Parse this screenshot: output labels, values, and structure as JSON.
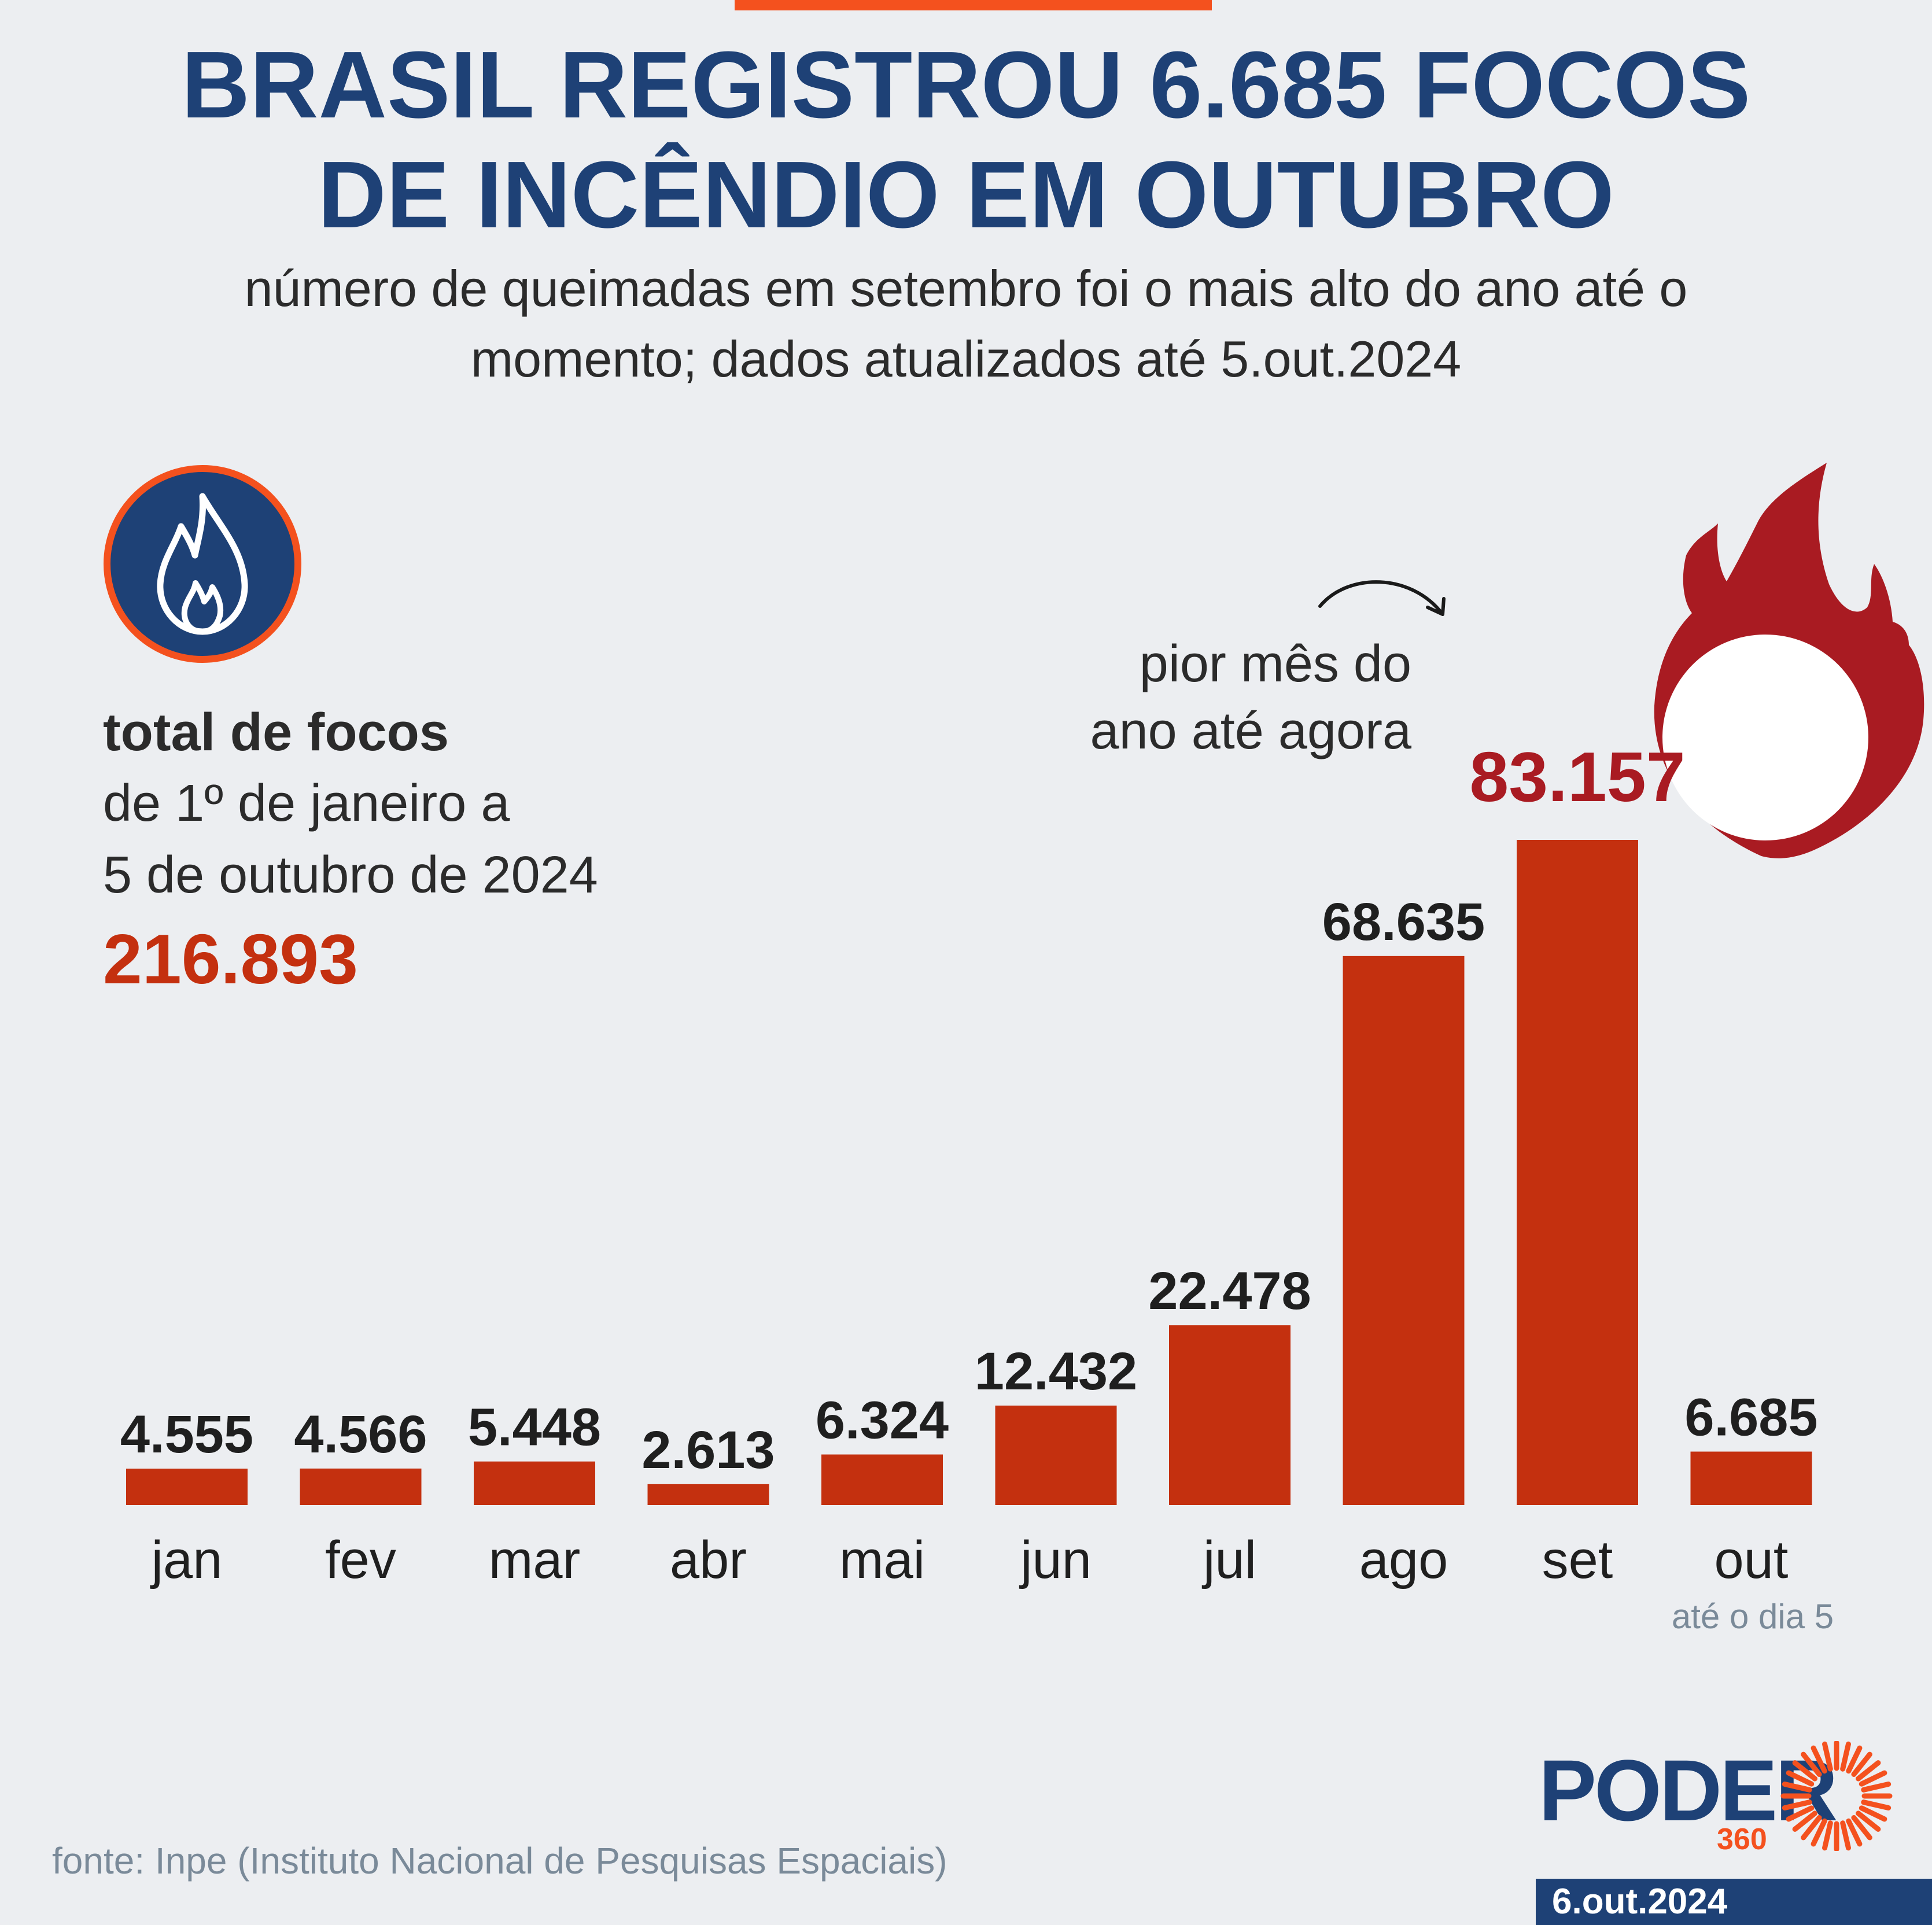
{
  "header": {
    "title_line1": "BRASIL REGISTROU 6.685 FOCOS",
    "title_line2": "DE INCÊNDIO EM OUTUBRO",
    "subtitle_line1": "número de queimadas em setembro foi o mais alto do ano até o",
    "subtitle_line2": "momento; dados atualizados até 5.out.2024"
  },
  "total": {
    "label": "total de focos",
    "range_line1": "de 1º de janeiro a",
    "range_line2": "5 de outubro de 2024",
    "value": "216.893"
  },
  "annotation": {
    "line1": "pior mês do",
    "line2": "ano até agora"
  },
  "month_note": "até o dia 5",
  "source": "fonte: Inpe (Instituto Nacional de Pesquisas Espaciais)",
  "logo": {
    "name": "PODER",
    "sub": "360"
  },
  "date": "6.out.2024",
  "colors": {
    "title": "#1e4176",
    "bar": "#c4300f",
    "highlight": "#a91b22",
    "accent": "#f4511e",
    "background": "#eceef1"
  },
  "icons": {
    "badge": "flame-icon",
    "arrow": "curved-arrow-icon",
    "highlight": "fire-icon"
  },
  "chart_data": {
    "type": "bar",
    "categories": [
      "jan",
      "fev",
      "mar",
      "abr",
      "mai",
      "jun",
      "jul",
      "ago",
      "set",
      "out"
    ],
    "values": [
      4555,
      4566,
      5448,
      2613,
      6324,
      12432,
      22478,
      68635,
      83157,
      6685
    ],
    "labels": [
      "4.555",
      "4.566",
      "5.448",
      "2.613",
      "6.324",
      "12.432",
      "22.478",
      "68.635",
      "83.157",
      "6.685"
    ],
    "highlight_index": 8,
    "ylim": [
      0,
      83157
    ],
    "grid": false,
    "legend": "none"
  }
}
